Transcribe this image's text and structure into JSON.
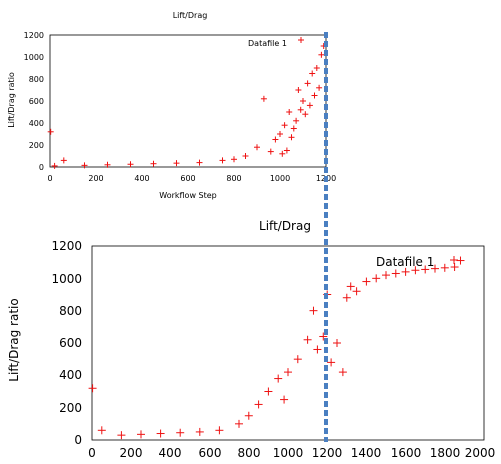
{
  "colors": {
    "series": "#ee1111",
    "marker_line": "#4a7fc1",
    "axis": "#000000"
  },
  "chart_data": [
    {
      "type": "scatter",
      "title": "Lift/Drag",
      "xlabel": "Workflow Step",
      "ylabel": "Lift/Drag ratio",
      "xlim": [
        0,
        1200
      ],
      "ylim": [
        0,
        1200
      ],
      "x_ticks": [
        "0",
        "200",
        "400",
        "600",
        "800",
        "1000",
        "1200"
      ],
      "y_ticks": [
        "0",
        "200",
        "400",
        "600",
        "800",
        "1000",
        "1200"
      ],
      "legend": {
        "label": "Datafile 1",
        "position": "top-right"
      },
      "marker": "+",
      "series": [
        {
          "name": "Datafile 1",
          "x": [
            3,
            20,
            60,
            150,
            250,
            350,
            450,
            550,
            650,
            750,
            800,
            850,
            900,
            930,
            960,
            980,
            1000,
            1010,
            1020,
            1030,
            1040,
            1050,
            1060,
            1070,
            1080,
            1090,
            1100,
            1110,
            1120,
            1130,
            1140,
            1150,
            1160,
            1170,
            1180,
            1190
          ],
          "y": [
            320,
            10,
            60,
            15,
            20,
            25,
            30,
            35,
            40,
            60,
            70,
            100,
            180,
            620,
            140,
            250,
            300,
            120,
            380,
            150,
            500,
            270,
            350,
            420,
            700,
            520,
            600,
            480,
            760,
            560,
            850,
            650,
            900,
            720,
            1020,
            1100
          ]
        }
      ]
    },
    {
      "type": "scatter",
      "title": "Lift/Drag",
      "xlabel": "",
      "ylabel": "Lift/Drag ratio",
      "xlim": [
        0,
        2000
      ],
      "ylim": [
        0,
        1200
      ],
      "x_ticks": [
        "0",
        "200",
        "400",
        "600",
        "800",
        "1000",
        "1200",
        "1400",
        "1600",
        "1800",
        "2000"
      ],
      "y_ticks": [
        "0",
        "200",
        "400",
        "600",
        "800",
        "1000",
        "1200"
      ],
      "legend": {
        "label": "Datafile 1",
        "position": "top-right"
      },
      "marker": "+",
      "series": [
        {
          "name": "Datafile 1",
          "x": [
            3,
            50,
            150,
            250,
            350,
            450,
            550,
            650,
            750,
            800,
            850,
            900,
            950,
            980,
            1000,
            1050,
            1100,
            1130,
            1150,
            1180,
            1200,
            1220,
            1250,
            1280,
            1300,
            1320,
            1350,
            1400,
            1450,
            1500,
            1550,
            1600,
            1650,
            1700,
            1750,
            1800,
            1850,
            1880
          ],
          "y": [
            320,
            60,
            30,
            35,
            40,
            45,
            50,
            60,
            100,
            150,
            220,
            300,
            380,
            250,
            420,
            500,
            620,
            800,
            560,
            640,
            900,
            480,
            600,
            420,
            880,
            950,
            920,
            980,
            1000,
            1020,
            1030,
            1040,
            1050,
            1055,
            1060,
            1065,
            1070,
            1110
          ]
        }
      ]
    }
  ]
}
